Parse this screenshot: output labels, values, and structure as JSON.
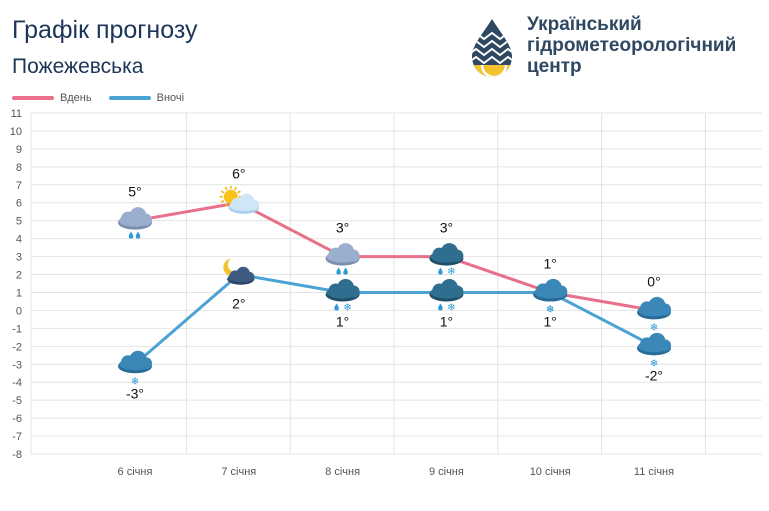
{
  "header": {
    "title": "Графік прогнозу",
    "location": "Пожежевська"
  },
  "org": {
    "line1": "Український",
    "line2": "гідрометеорологічний",
    "line3": "центр"
  },
  "chart_data": {
    "type": "line",
    "categories": [
      "6 січня",
      "7 січня",
      "8 січня",
      "9 січня",
      "10 січня",
      "11 січня"
    ],
    "series": [
      {
        "name": "Вдень",
        "color": "#e8708a",
        "values": [
          5,
          6,
          3,
          3,
          1,
          0
        ],
        "labels": [
          "5°",
          "6°",
          "3°",
          "3°",
          "1°",
          "0°"
        ],
        "icons": [
          "cloud-rain-icon",
          "sun-cloud-icon",
          "cloud-rain-icon",
          "cloud-rain-snow-icon",
          "cloud-snow-icon",
          "cloud-snow-icon"
        ]
      },
      {
        "name": "Вночі",
        "color": "#4aa3d4",
        "values": [
          -3,
          2,
          1,
          1,
          1,
          -2
        ],
        "labels": [
          "-3°",
          "2°",
          "1°",
          "1°",
          "1°",
          "-2°"
        ],
        "icons": [
          "cloud-snow-icon",
          "moon-cloud-icon",
          "cloud-rain-snow-icon",
          "cloud-rain-snow-icon",
          "cloud-snow-icon",
          "cloud-snow-icon"
        ]
      }
    ],
    "title": "Графік прогнозу",
    "xlabel": "",
    "ylabel": "",
    "ylim": [
      -8,
      11
    ],
    "yticks": [
      "11",
      "10",
      "9",
      "8",
      "7",
      "6",
      "5",
      "4",
      "3",
      "2",
      "1",
      "0",
      "-1",
      "-2",
      "-3",
      "-4",
      "-5",
      "-6",
      "-7",
      "-8"
    ],
    "legend": "top-left"
  }
}
